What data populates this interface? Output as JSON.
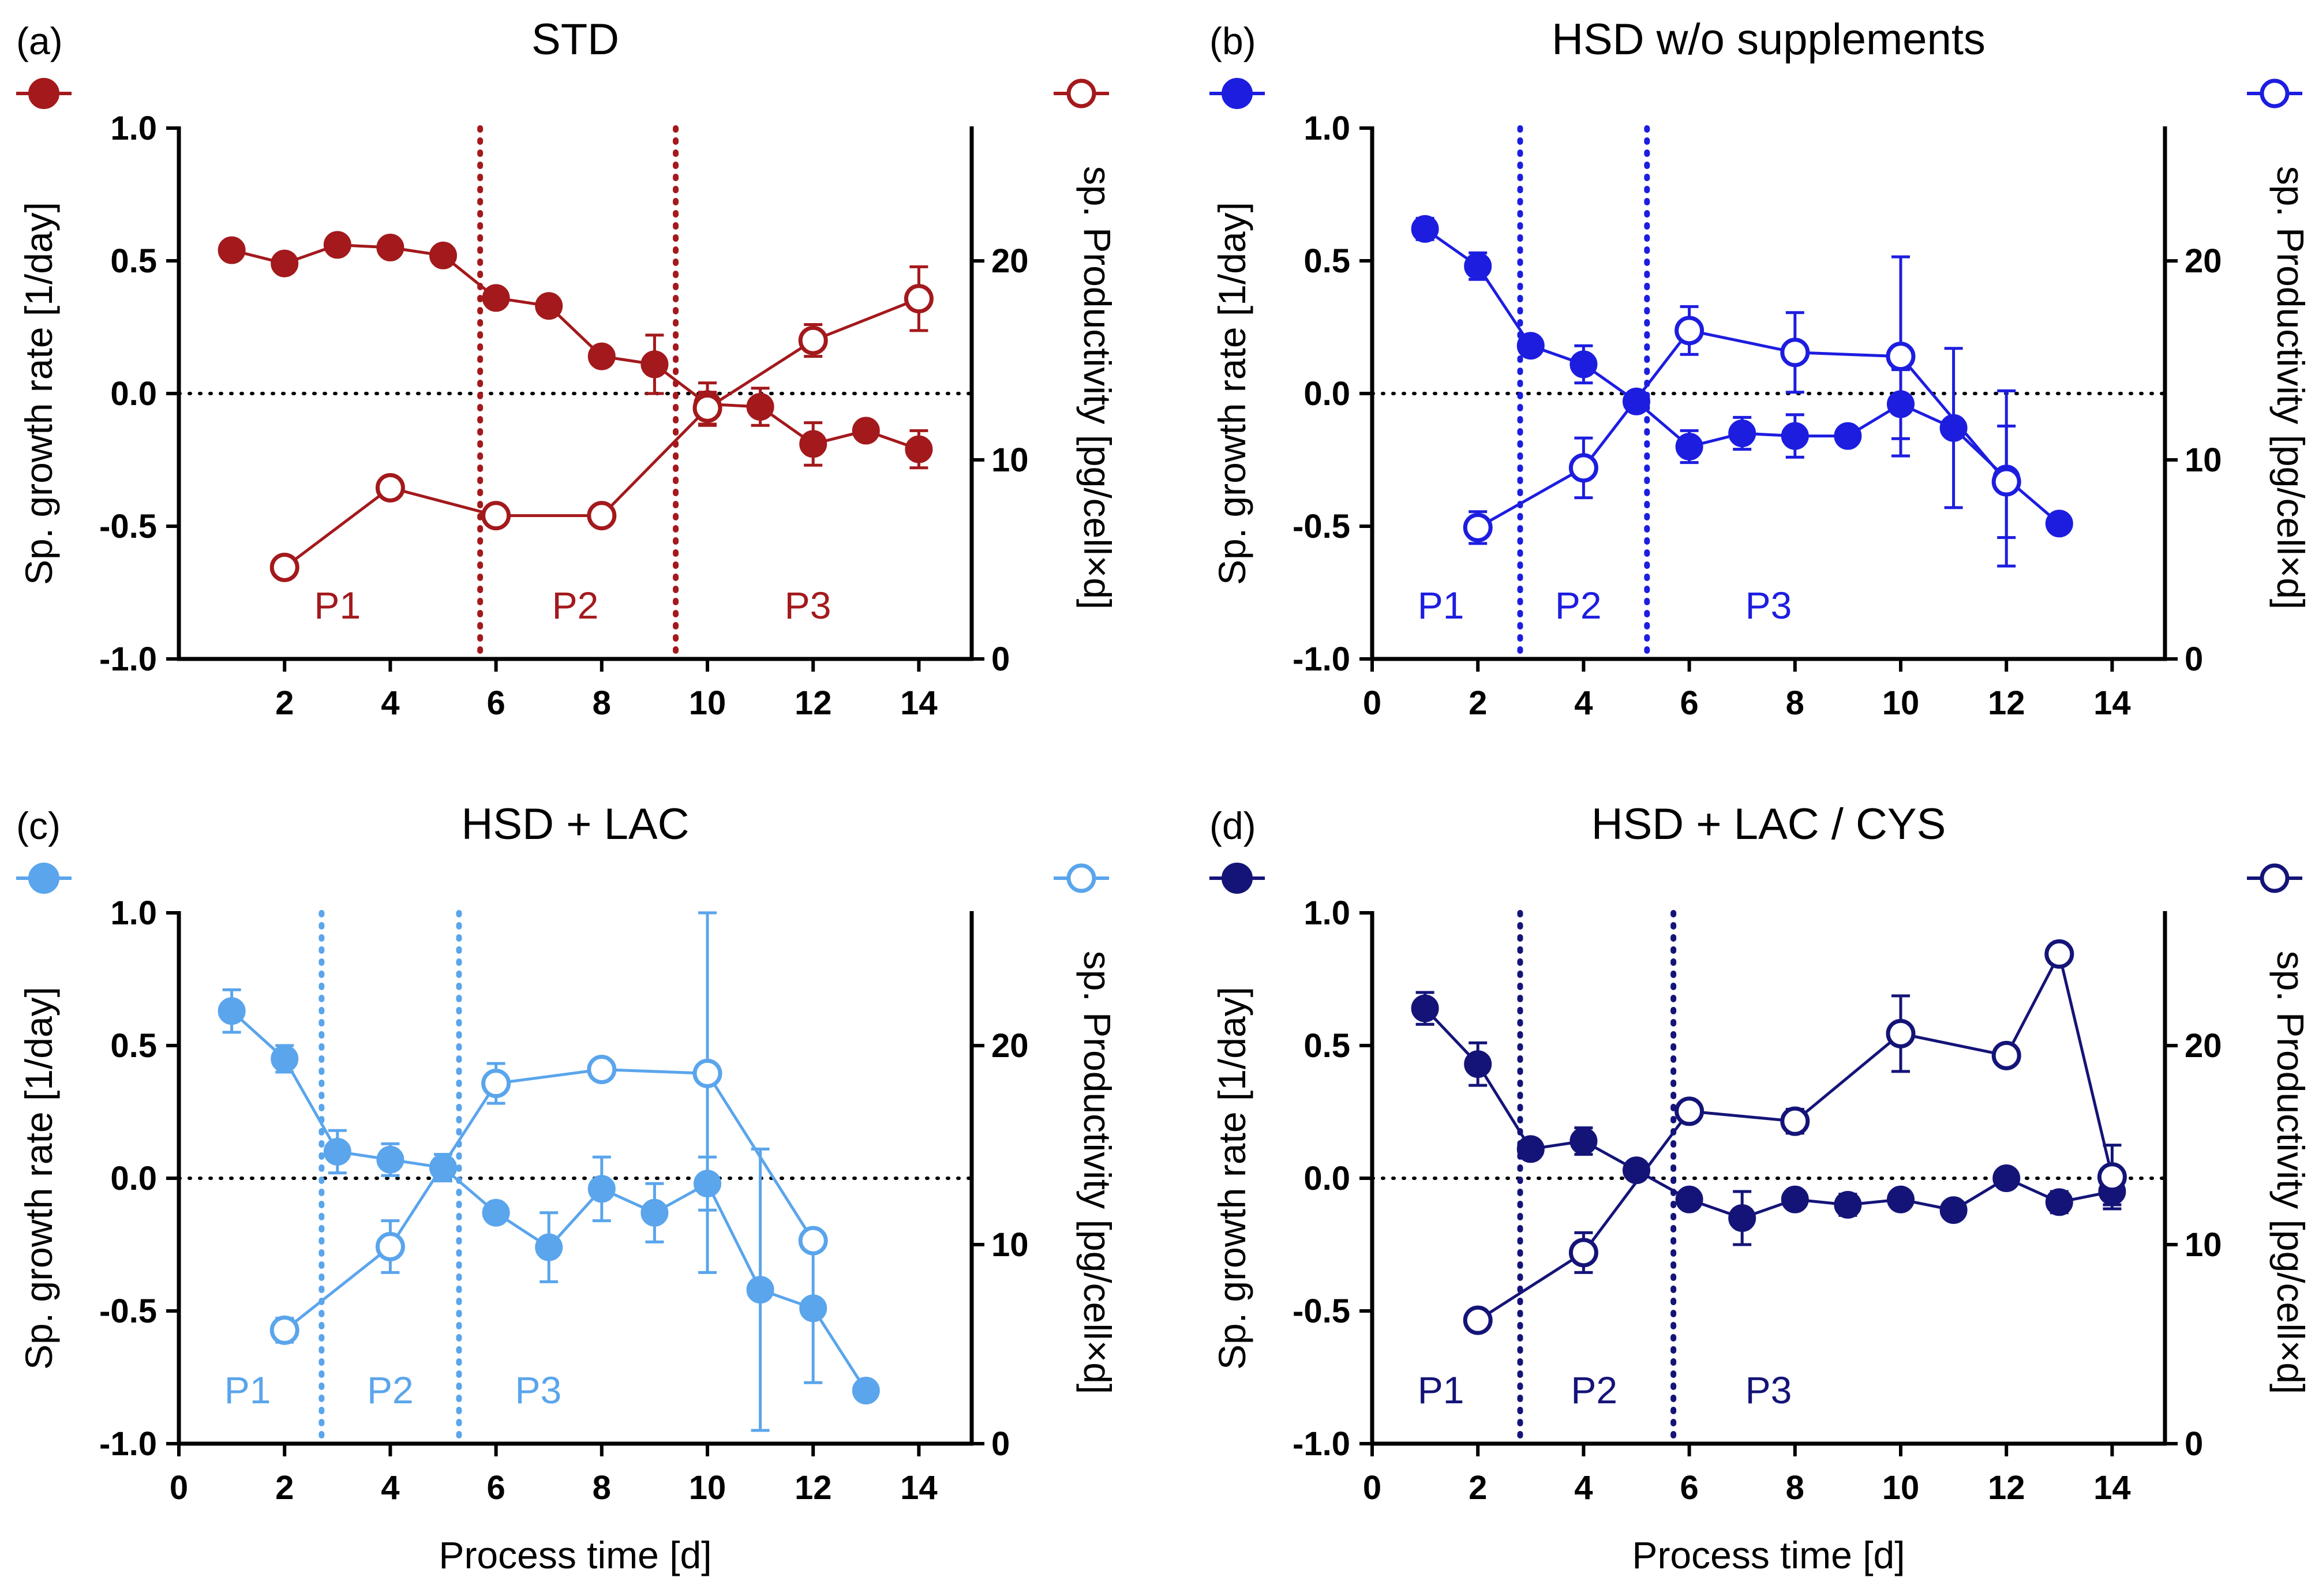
{
  "figure": {
    "x_axis_label": "Process time [d]",
    "left_axis_label": "Sp. growth rate [1/day]",
    "right_axis_label": "sp. Productivity [pg/cell×d]"
  },
  "chart_data": [
    {
      "type": "line",
      "panel": "(a)",
      "title": "STD",
      "color": "#A3191C",
      "xlabel": "",
      "ylabel": "Sp. growth rate [1/day]",
      "y2label": "sp. Productivity [pg/cell×d]",
      "xlim": [
        0,
        15
      ],
      "ylim": [
        -1.0,
        1.0
      ],
      "y2lim": [
        0,
        26.67
      ],
      "x_ticks": [
        "2",
        "4",
        "6",
        "8",
        "10",
        "12",
        "14"
      ],
      "y_ticks": [
        "-1.0",
        "-0.5",
        "0.0",
        "0.5",
        "1.0"
      ],
      "y2_ticks": [
        "0",
        "10",
        "20"
      ],
      "phase_boundaries": [
        5.7,
        9.4
      ],
      "phase_labels": [
        {
          "label": "P1",
          "x": 3.0
        },
        {
          "label": "P2",
          "x": 7.5
        },
        {
          "label": "P3",
          "x": 11.9
        }
      ],
      "series": [
        {
          "name": "Sp. growth rate",
          "axis": "left",
          "marker": "filled",
          "x": [
            1,
            2,
            3,
            4,
            5,
            6,
            7,
            8,
            9,
            10,
            11,
            12,
            13,
            14
          ],
          "values": [
            0.54,
            0.49,
            0.56,
            0.55,
            0.52,
            0.36,
            0.33,
            0.14,
            0.11,
            -0.04,
            -0.05,
            -0.19,
            -0.14,
            -0.21
          ],
          "error": [
            0.02,
            0.02,
            0.02,
            0.02,
            0.02,
            0.02,
            0.02,
            0.02,
            0.11,
            0.08,
            0.07,
            0.08,
            0.03,
            0.07
          ]
        },
        {
          "name": "sp. Productivity",
          "axis": "right",
          "marker": "open",
          "x": [
            2,
            4,
            6,
            8,
            10,
            12,
            14
          ],
          "values": [
            4.6,
            8.6,
            7.2,
            7.2,
            12.6,
            16.0,
            18.1
          ],
          "error": [
            0.2,
            0.2,
            0.2,
            0.2,
            0.8,
            0.8,
            1.6
          ]
        }
      ]
    },
    {
      "type": "line",
      "panel": "(b)",
      "title": "HSD w/o supplements",
      "color": "#1D1DE0",
      "xlabel": "",
      "ylabel": "Sp. growth rate [1/day]",
      "y2label": "sp. Productivity [pg/cell×d]",
      "xlim": [
        0,
        15
      ],
      "ylim": [
        -1.0,
        1.0
      ],
      "y2lim": [
        0,
        26.67
      ],
      "x_ticks": [
        "0",
        "2",
        "4",
        "6",
        "8",
        "10",
        "12",
        "14"
      ],
      "y_ticks": [
        "-1.0",
        "-0.5",
        "0.0",
        "0.5",
        "1.0"
      ],
      "y2_ticks": [
        "0",
        "10",
        "20"
      ],
      "phase_boundaries": [
        2.8,
        5.2
      ],
      "phase_labels": [
        {
          "label": "P1",
          "x": 1.3
        },
        {
          "label": "P2",
          "x": 3.9
        },
        {
          "label": "P3",
          "x": 7.5
        }
      ],
      "series": [
        {
          "name": "Sp. growth rate",
          "axis": "left",
          "marker": "filled",
          "x": [
            1,
            2,
            3,
            4,
            5,
            6,
            7,
            8,
            9,
            10,
            11,
            12,
            13
          ],
          "values": [
            0.62,
            0.48,
            0.18,
            0.11,
            -0.03,
            -0.2,
            -0.15,
            -0.16,
            -0.16,
            -0.04,
            -0.13,
            -0.32,
            -0.49
          ],
          "error": [
            0.04,
            0.05,
            0.02,
            0.07,
            0.02,
            0.06,
            0.06,
            0.08,
            0.02,
            0.13,
            0.3,
            0.33,
            0.01
          ]
        },
        {
          "name": "sp. Productivity",
          "axis": "right",
          "marker": "open",
          "x": [
            2,
            4,
            6,
            8,
            10,
            12
          ],
          "values": [
            6.6,
            9.6,
            16.5,
            15.4,
            15.2,
            8.9
          ],
          "error": [
            0.8,
            1.5,
            1.2,
            2.0,
            5.0,
            2.8
          ]
        }
      ]
    },
    {
      "type": "line",
      "panel": "(c)",
      "title": "HSD + LAC",
      "color": "#5AA5EC",
      "xlabel": "Process time [d]",
      "ylabel": "Sp. growth rate [1/day]",
      "y2label": "sp. Productivity [pg/cell×d]",
      "xlim": [
        0,
        15
      ],
      "ylim": [
        -1.0,
        1.0
      ],
      "y2lim": [
        0,
        26.67
      ],
      "x_ticks": [
        "0",
        "2",
        "4",
        "6",
        "8",
        "10",
        "12",
        "14"
      ],
      "y_ticks": [
        "-1.0",
        "-0.5",
        "0.0",
        "0.5",
        "1.0"
      ],
      "y2_ticks": [
        "0",
        "10",
        "20"
      ],
      "phase_boundaries": [
        2.7,
        5.3
      ],
      "phase_labels": [
        {
          "label": "P1",
          "x": 1.3
        },
        {
          "label": "P2",
          "x": 4.0
        },
        {
          "label": "P3",
          "x": 6.8
        }
      ],
      "series": [
        {
          "name": "Sp. growth rate",
          "axis": "left",
          "marker": "filled",
          "x": [
            1,
            2,
            3,
            4,
            5,
            6,
            7,
            8,
            9,
            10,
            11,
            12,
            13
          ],
          "values": [
            0.63,
            0.45,
            0.1,
            0.07,
            0.04,
            -0.13,
            -0.26,
            -0.04,
            -0.13,
            -0.02,
            -0.42,
            -0.49,
            -0.8
          ],
          "error": [
            0.08,
            0.05,
            0.08,
            0.06,
            0.05,
            0.02,
            0.13,
            0.12,
            0.11,
            0.1,
            0.53,
            0.28,
            0.01
          ]
        },
        {
          "name": "sp. Productivity",
          "axis": "right",
          "marker": "open",
          "x": [
            2,
            4,
            6,
            8,
            10,
            12
          ],
          "values": [
            5.7,
            9.9,
            18.1,
            18.8,
            18.6,
            10.2
          ],
          "error": [
            0.6,
            1.3,
            1.0,
            0.2,
            10.0,
            0.3
          ]
        }
      ]
    },
    {
      "type": "line",
      "panel": "(d)",
      "title": "HSD + LAC / CYS",
      "color": "#141478",
      "xlabel": "Process time [d]",
      "ylabel": "Sp. growth rate [1/day]",
      "y2label": "sp. Productivity [pg/cell×d]",
      "xlim": [
        0,
        15
      ],
      "ylim": [
        -1.0,
        1.0
      ],
      "y2lim": [
        0,
        26.67
      ],
      "x_ticks": [
        "0",
        "2",
        "4",
        "6",
        "8",
        "10",
        "12",
        "14"
      ],
      "y_ticks": [
        "-1.0",
        "-0.5",
        "0.0",
        "0.5",
        "1.0"
      ],
      "y2_ticks": [
        "0",
        "10",
        "20"
      ],
      "phase_boundaries": [
        2.8,
        5.7
      ],
      "phase_labels": [
        {
          "label": "P1",
          "x": 1.3
        },
        {
          "label": "P2",
          "x": 4.2
        },
        {
          "label": "P3",
          "x": 7.5
        }
      ],
      "series": [
        {
          "name": "Sp. growth rate",
          "axis": "left",
          "marker": "filled",
          "x": [
            1,
            2,
            3,
            4,
            5,
            6,
            7,
            8,
            9,
            10,
            11,
            12,
            13,
            14
          ],
          "values": [
            0.64,
            0.43,
            0.11,
            0.14,
            0.03,
            -0.08,
            -0.15,
            -0.08,
            -0.1,
            -0.08,
            -0.12,
            0.0,
            -0.09,
            -0.05
          ],
          "error": [
            0.06,
            0.08,
            0.02,
            0.05,
            0.02,
            0.03,
            0.1,
            0.02,
            0.04,
            0.02,
            0.02,
            0.01,
            0.04,
            0.05
          ]
        },
        {
          "name": "sp. Productivity",
          "axis": "right",
          "marker": "open",
          "x": [
            2,
            4,
            6,
            8,
            10,
            12,
            13,
            14
          ],
          "values": [
            6.2,
            9.6,
            16.7,
            16.2,
            20.6,
            19.5,
            24.6,
            13.4
          ],
          "error": [
            0.2,
            1.0,
            0.2,
            0.6,
            1.9,
            0.3,
            0.3,
            1.6
          ]
        }
      ]
    }
  ]
}
